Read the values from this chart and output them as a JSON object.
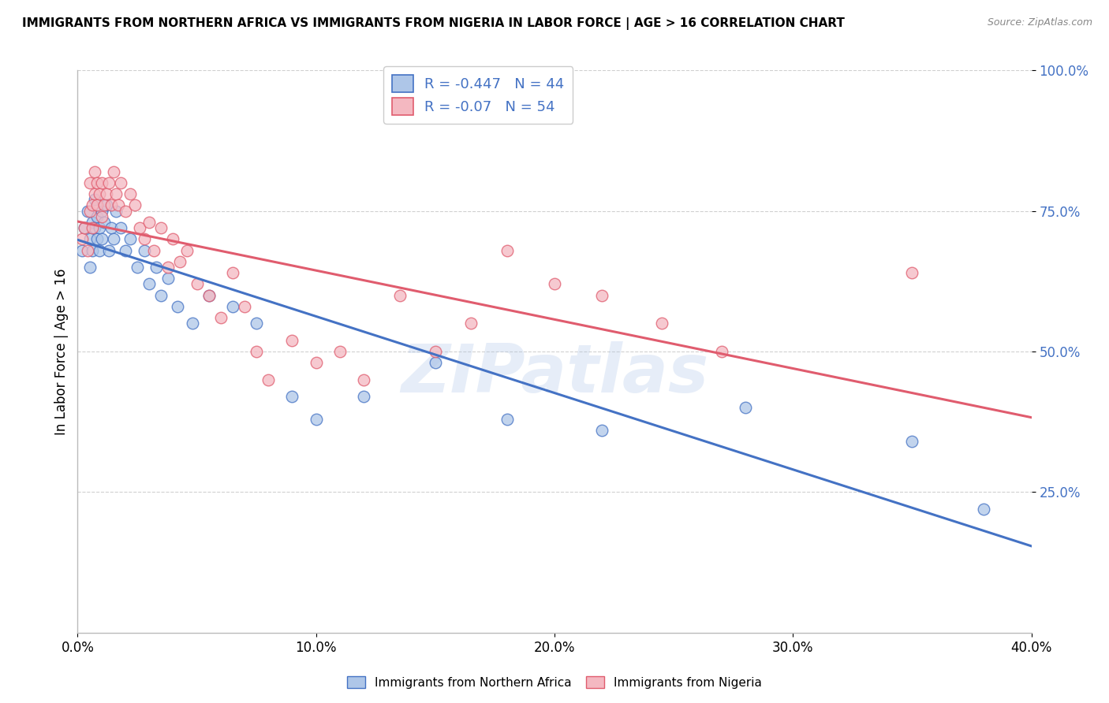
{
  "title": "IMMIGRANTS FROM NORTHERN AFRICA VS IMMIGRANTS FROM NIGERIA IN LABOR FORCE | AGE > 16 CORRELATION CHART",
  "source": "Source: ZipAtlas.com",
  "ylabel": "In Labor Force | Age > 16",
  "legend_label_blue": "Immigrants from Northern Africa",
  "legend_label_pink": "Immigrants from Nigeria",
  "R_blue": -0.447,
  "N_blue": 44,
  "R_pink": -0.07,
  "N_pink": 54,
  "color_blue": "#aec6e8",
  "color_pink": "#f4b8c1",
  "line_color_blue": "#4472c4",
  "line_color_pink": "#e05c6e",
  "xlim": [
    0.0,
    0.4
  ],
  "ylim": [
    0.0,
    1.0
  ],
  "xticks": [
    0.0,
    0.1,
    0.2,
    0.3,
    0.4
  ],
  "yticks": [
    0.25,
    0.5,
    0.75,
    1.0
  ],
  "ytick_labels": [
    "25.0%",
    "50.0%",
    "75.0%",
    "100.0%"
  ],
  "xtick_labels": [
    "0.0%",
    "10.0%",
    "20.0%",
    "30.0%",
    "40.0%"
  ],
  "blue_x": [
    0.002,
    0.003,
    0.004,
    0.005,
    0.005,
    0.006,
    0.006,
    0.007,
    0.007,
    0.008,
    0.008,
    0.009,
    0.009,
    0.01,
    0.01,
    0.011,
    0.012,
    0.013,
    0.014,
    0.015,
    0.016,
    0.018,
    0.02,
    0.022,
    0.025,
    0.028,
    0.03,
    0.033,
    0.035,
    0.038,
    0.042,
    0.048,
    0.055,
    0.065,
    0.075,
    0.09,
    0.1,
    0.12,
    0.15,
    0.18,
    0.22,
    0.28,
    0.35,
    0.38
  ],
  "blue_y": [
    0.68,
    0.72,
    0.75,
    0.7,
    0.65,
    0.73,
    0.68,
    0.77,
    0.72,
    0.74,
    0.7,
    0.72,
    0.68,
    0.75,
    0.7,
    0.73,
    0.76,
    0.68,
    0.72,
    0.7,
    0.75,
    0.72,
    0.68,
    0.7,
    0.65,
    0.68,
    0.62,
    0.65,
    0.6,
    0.63,
    0.58,
    0.55,
    0.6,
    0.58,
    0.55,
    0.42,
    0.38,
    0.42,
    0.48,
    0.38,
    0.36,
    0.4,
    0.34,
    0.22
  ],
  "pink_x": [
    0.002,
    0.003,
    0.004,
    0.005,
    0.005,
    0.006,
    0.006,
    0.007,
    0.007,
    0.008,
    0.008,
    0.009,
    0.01,
    0.01,
    0.011,
    0.012,
    0.013,
    0.014,
    0.015,
    0.016,
    0.017,
    0.018,
    0.02,
    0.022,
    0.024,
    0.026,
    0.028,
    0.03,
    0.032,
    0.035,
    0.038,
    0.04,
    0.043,
    0.046,
    0.05,
    0.055,
    0.06,
    0.065,
    0.07,
    0.075,
    0.08,
    0.09,
    0.1,
    0.11,
    0.12,
    0.135,
    0.15,
    0.165,
    0.18,
    0.2,
    0.22,
    0.245,
    0.27,
    0.35
  ],
  "pink_y": [
    0.7,
    0.72,
    0.68,
    0.75,
    0.8,
    0.76,
    0.72,
    0.78,
    0.82,
    0.8,
    0.76,
    0.78,
    0.74,
    0.8,
    0.76,
    0.78,
    0.8,
    0.76,
    0.82,
    0.78,
    0.76,
    0.8,
    0.75,
    0.78,
    0.76,
    0.72,
    0.7,
    0.73,
    0.68,
    0.72,
    0.65,
    0.7,
    0.66,
    0.68,
    0.62,
    0.6,
    0.56,
    0.64,
    0.58,
    0.5,
    0.45,
    0.52,
    0.48,
    0.5,
    0.45,
    0.6,
    0.5,
    0.55,
    0.68,
    0.62,
    0.6,
    0.55,
    0.5,
    0.64
  ],
  "watermark_text": "ZIPatlas",
  "background_color": "#ffffff",
  "grid_color": "#d0d0d0"
}
